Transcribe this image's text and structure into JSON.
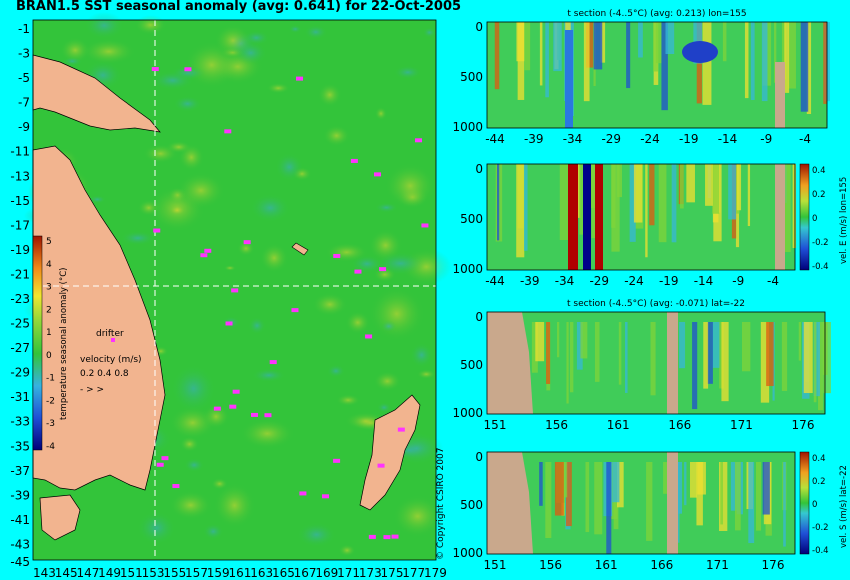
{
  "title": "BRAN1.5 SST seasonal anomaly (avg: 0.641) for 22-Oct-2005",
  "copyright": "© Copyright CSIRO 2007",
  "colors": {
    "background": "#00ffff",
    "ocean": "#33c43a",
    "land": "#f2b48f",
    "section_bg": "#40cc59",
    "drifter": "#ff33ff",
    "bottom_mask": "#c9a88c"
  },
  "main_map": {
    "ytick_labels": [
      "-1",
      "-3",
      "-5",
      "-7",
      "-9",
      "-11",
      "-13",
      "-15",
      "-17",
      "-19",
      "-21",
      "-23",
      "-25",
      "-27",
      "-29",
      "-31",
      "-33",
      "-35",
      "-37",
      "-39",
      "-41",
      "-43",
      "-45"
    ],
    "xtick_labels": [
      "143",
      "145",
      "147",
      "149",
      "151",
      "153",
      "155",
      "157",
      "159",
      "161",
      "163",
      "165",
      "167",
      "169",
      "171",
      "173",
      "175",
      "177",
      "179"
    ],
    "ylim": [
      -45,
      -1
    ],
    "xlim": [
      143,
      179
    ],
    "section_lon": 155,
    "section_lat": -22,
    "colorbar": {
      "label": "temperature seasonal anomaly (°C)",
      "ticks": [
        "5",
        "4",
        "3",
        "2",
        "1",
        "0",
        "-1",
        "-2",
        "-3",
        "-4"
      ],
      "range": [
        -4,
        5
      ]
    },
    "drifter_label": "drifter",
    "velocity_label": "velocity (m/s)",
    "velocity_values": "0.2 0.4 0.8"
  },
  "panels": [
    {
      "title": "t section (-4..5°C) (avg: 0.213) lon=155",
      "xtick_labels": [
        "-44",
        "-39",
        "-34",
        "-29",
        "-24",
        "-19",
        "-14",
        "-9",
        "-4"
      ],
      "ytick_labels": [
        "0",
        "500",
        "1000"
      ],
      "colorbar_label": "",
      "colorbar_ticks": []
    },
    {
      "title": "",
      "xtick_labels": [
        "-44",
        "-39",
        "-34",
        "-29",
        "-24",
        "-19",
        "-14",
        "-9",
        "-4"
      ],
      "ytick_labels": [
        "0",
        "500",
        "1000"
      ],
      "colorbar_label": "vel. E (m/s) lon=155",
      "colorbar_ticks": [
        "0.4",
        "0.2",
        "0",
        "-0.2",
        "-0.4"
      ]
    },
    {
      "title": "t section (-4..5°C) (avg: -0.071) lat=-22",
      "xtick_labels": [
        "151",
        "156",
        "161",
        "166",
        "171",
        "176"
      ],
      "ytick_labels": [
        "0",
        "500",
        "1000"
      ],
      "colorbar_label": "",
      "colorbar_ticks": []
    },
    {
      "title": "",
      "xtick_labels": [
        "151",
        "156",
        "161",
        "166",
        "171",
        "176"
      ],
      "ytick_labels": [
        "0",
        "500",
        "1000"
      ],
      "colorbar_label": "vel. S (m/s) lat=-22",
      "colorbar_ticks": [
        "0.4",
        "0.2",
        "0",
        "-0.2",
        "-0.4"
      ]
    }
  ],
  "chart_data": [
    {
      "type": "heatmap",
      "title": "BRAN1.5 SST seasonal anomaly (avg: 0.641) for 22-Oct-2005",
      "xlim": [
        143,
        179
      ],
      "ylim": [
        -45,
        -1
      ],
      "colorbar_range": [
        -4,
        5
      ],
      "average": 0.641
    },
    {
      "type": "heatmap",
      "title": "t section (-4..5°C) (avg: 0.213) lon=155",
      "xlim": [
        -44,
        -1
      ],
      "ylim": [
        1000,
        0
      ],
      "average": 0.213
    },
    {
      "type": "heatmap",
      "title": "",
      "xlim": [
        -44,
        -1
      ],
      "ylim": [
        1000,
        0
      ],
      "colorbar_range": [
        -0.4,
        0.4
      ]
    },
    {
      "type": "heatmap",
      "title": "t section (-4..5°C) (avg: -0.071) lat=-22",
      "xlim": [
        150,
        180
      ],
      "ylim": [
        1000,
        0
      ],
      "average": -0.071
    },
    {
      "type": "heatmap",
      "title": "",
      "xlim": [
        150,
        180
      ],
      "ylim": [
        1000,
        0
      ],
      "colorbar_range": [
        -0.4,
        0.4
      ]
    }
  ]
}
